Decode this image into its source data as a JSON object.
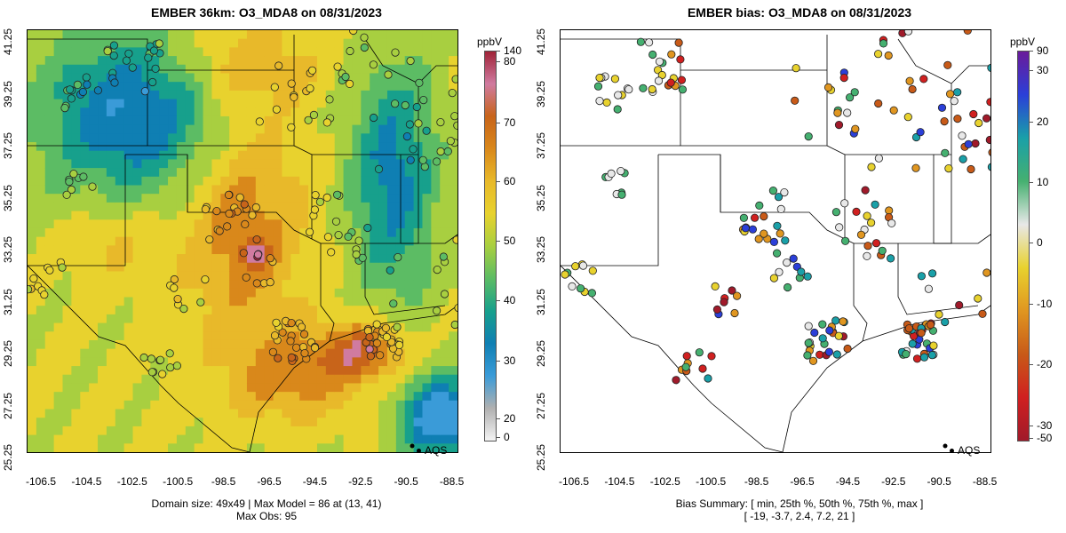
{
  "left_panel": {
    "title": "EMBER 36km: O3_MDA8 on 08/31/2023",
    "colorbar_unit": "ppbV",
    "colorbar_ticks": [
      "140",
      "80",
      "70",
      "60",
      "50",
      "40",
      "30",
      "20",
      "0"
    ],
    "legend_label": "AQS",
    "footer_line1": "Domain size: 49x49 | Max Model = 86 at (13, 41)",
    "footer_line2": "Max Obs: 95"
  },
  "right_panel": {
    "title": "EMBER bias: O3_MDA8 on 08/31/2023",
    "colorbar_unit": "ppbV",
    "colorbar_ticks": [
      "90",
      "30",
      "20",
      "10",
      "0",
      "-10",
      "-20",
      "-30",
      "-50"
    ],
    "legend_label": "AQS",
    "footer_line1": "Bias Summary: [ min, 25th %, 50th %, 75th %, max ]",
    "footer_line2": "[ -19,   -3.7,   2.4,   7.2,   21 ]"
  },
  "x_ticks": [
    "-106.5",
    "-104.5",
    "-102.5",
    "-100.5",
    "-98.5",
    "-96.5",
    "-94.5",
    "-92.5",
    "-90.5",
    "-88.5"
  ],
  "y_ticks": [
    "41.25",
    "39.25",
    "37.25",
    "35.25",
    "33.25",
    "31.25",
    "29.25",
    "27.25",
    "25.25"
  ],
  "colors": {
    "model_scale": [
      "#f4f4f4",
      "#b0b0b0",
      "#3a9bd8",
      "#0f7fb3",
      "#17a08c",
      "#5cbc64",
      "#a8cf40",
      "#e8d22e",
      "#e8b92a",
      "#d9881b",
      "#c8641a",
      "#d07ba0",
      "#a02438"
    ],
    "bias_scale": [
      "#6a1b9a",
      "#2b3fd8",
      "#1aa0a8",
      "#45b070",
      "#e8e8e8",
      "#e8d22e",
      "#e09620",
      "#c85a18",
      "#d02020",
      "#a01a2a"
    ]
  }
}
